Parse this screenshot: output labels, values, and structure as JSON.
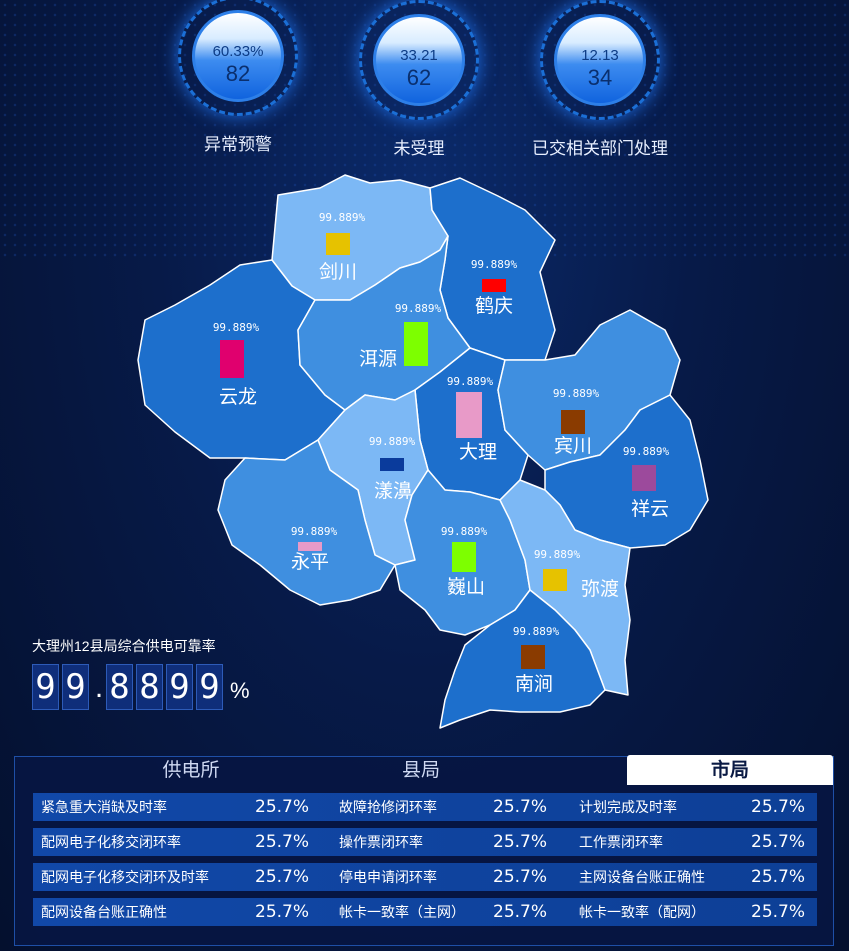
{
  "gauges": [
    {
      "percent": "60.33%",
      "value": "82",
      "label": "异常预警"
    },
    {
      "percent": "33.21",
      "value": "62",
      "label": "未受理"
    },
    {
      "percent": "12.13",
      "value": "34",
      "label": "已交相关部门处理"
    }
  ],
  "map": {
    "regions": [
      {
        "name": "剑川",
        "pct": "99.889%",
        "marker_color": "#e6c200"
      },
      {
        "name": "鹤庆",
        "pct": "99.889%",
        "marker_color": "#ff0000"
      },
      {
        "name": "洱源",
        "pct": "99.889%",
        "marker_color": "#7dff00"
      },
      {
        "name": "云龙",
        "pct": "99.889%",
        "marker_color": "#e0006e"
      },
      {
        "name": "大理",
        "pct": "99.889%",
        "marker_color": "#e89ac8"
      },
      {
        "name": "宾川",
        "pct": "99.889%",
        "marker_color": "#8a3b00"
      },
      {
        "name": "祥云",
        "pct": "99.889%",
        "marker_color": "#9c4a9c"
      },
      {
        "name": "漾濞",
        "pct": "99.889%",
        "marker_color": "#0a3b9c"
      },
      {
        "name": "永平",
        "pct": "99.889%",
        "marker_color": "#e89ac8"
      },
      {
        "name": "巍山",
        "pct": "99.889%",
        "marker_color": "#7dff00"
      },
      {
        "name": "弥渡",
        "pct": "99.889%",
        "marker_color": "#e6c200"
      },
      {
        "name": "南涧",
        "pct": "99.889%",
        "marker_color": "#8a3b00"
      }
    ]
  },
  "reliability": {
    "title": "大理州12县局综合供电可靠率",
    "digits": [
      "9",
      "9",
      ".",
      "8",
      "8",
      "9",
      "9"
    ],
    "unit": "%"
  },
  "tabs": [
    {
      "label": "供电所",
      "active": false
    },
    {
      "label": "县局",
      "active": false
    },
    {
      "label": "市局",
      "active": true
    }
  ],
  "table": {
    "rows": [
      [
        {
          "label": "紧急重大消缺及时率",
          "value": "25.7%"
        },
        {
          "label": "故障抢修闭环率",
          "value": "25.7%"
        },
        {
          "label": "计划完成及时率",
          "value": "25.7%"
        }
      ],
      [
        {
          "label": "配网电子化移交闭环率",
          "value": "25.7%"
        },
        {
          "label": "操作票闭环率",
          "value": "25.7%"
        },
        {
          "label": "工作票闭环率",
          "value": "25.7%"
        }
      ],
      [
        {
          "label": "配网电子化移交闭环及时率",
          "value": "25.7%"
        },
        {
          "label": "停电申请闭环率",
          "value": "25.7%"
        },
        {
          "label": "主网设备台账正确性",
          "value": "25.7%"
        }
      ],
      [
        {
          "label": "配网设备台账正确性",
          "value": "25.7%"
        },
        {
          "label": "帐卡一致率（主网）",
          "value": "25.7%"
        },
        {
          "label": "帐卡一致率（配网）",
          "value": "25.7%"
        }
      ]
    ]
  },
  "colors": {
    "light_region": "#7cb8f5",
    "mid_region": "#3f8fe0",
    "dark_region": "#1d6fcc",
    "row_bg": "#1148a8"
  }
}
